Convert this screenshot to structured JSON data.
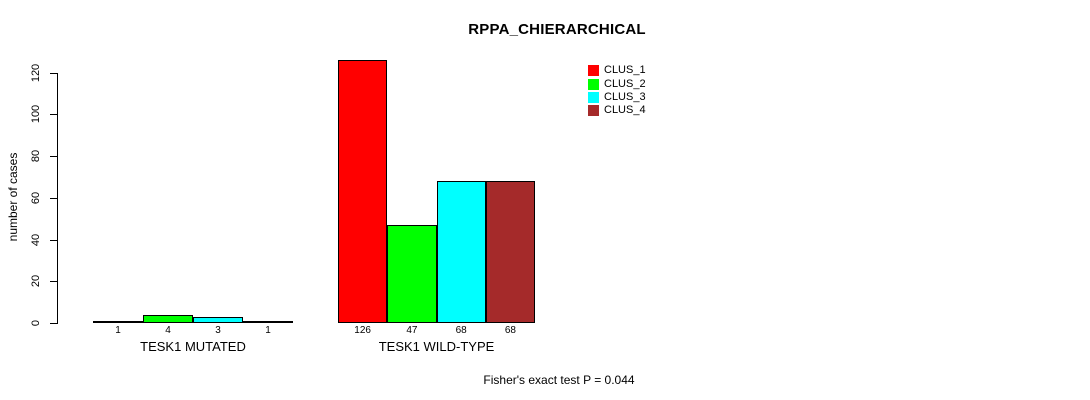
{
  "title": "RPPA_CHIERARCHICAL",
  "y_axis": {
    "label": "number of cases",
    "ticks": [
      0,
      20,
      40,
      60,
      80,
      100,
      120
    ]
  },
  "groups": [
    {
      "label": "TESK1 MUTATED"
    },
    {
      "label": "TESK1 WILD-TYPE"
    }
  ],
  "legend": {
    "entries": [
      {
        "label": "CLUS_1",
        "color": "#FF0000"
      },
      {
        "label": "CLUS_2",
        "color": "#00FF00"
      },
      {
        "label": "CLUS_3",
        "color": "#00FFFF"
      },
      {
        "label": "CLUS_4",
        "color": "#A52A2A"
      }
    ]
  },
  "caption": "Fisher's exact test P = 0.044",
  "chart_data": {
    "type": "bar",
    "title": "RPPA_CHIERARCHICAL",
    "xlabel": "",
    "ylabel": "number of cases",
    "ylim": [
      0,
      120
    ],
    "yticks": [
      0,
      20,
      40,
      60,
      80,
      100,
      120
    ],
    "grid": false,
    "legend_position": "top-right",
    "categories": [
      "TESK1 MUTATED",
      "TESK1 WILD-TYPE"
    ],
    "series": [
      {
        "name": "CLUS_1",
        "color": "#FF0000",
        "values": [
          1,
          126
        ]
      },
      {
        "name": "CLUS_2",
        "color": "#00FF00",
        "values": [
          4,
          47
        ]
      },
      {
        "name": "CLUS_3",
        "color": "#00FFFF",
        "values": [
          3,
          68
        ]
      },
      {
        "name": "CLUS_4",
        "color": "#A52A2A",
        "values": [
          1,
          68
        ]
      }
    ],
    "bar_value_labels": [
      [
        1,
        4,
        3,
        1
      ],
      [
        126,
        47,
        68,
        68
      ]
    ],
    "annotation": "Fisher's exact test P = 0.044"
  }
}
